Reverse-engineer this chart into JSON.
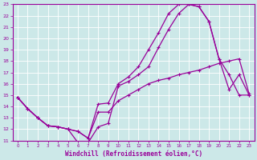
{
  "xlabel": "Windchill (Refroidissement éolien,°C)",
  "bg_color": "#cce8e8",
  "line_color": "#990099",
  "grid_color": "#ffffff",
  "xlim": [
    -0.5,
    23.5
  ],
  "ylim": [
    11,
    23
  ],
  "xticks": [
    0,
    1,
    2,
    3,
    4,
    5,
    6,
    7,
    8,
    9,
    10,
    11,
    12,
    13,
    14,
    15,
    16,
    17,
    18,
    19,
    20,
    21,
    22,
    23
  ],
  "yticks": [
    11,
    12,
    13,
    14,
    15,
    16,
    17,
    18,
    19,
    20,
    21,
    22,
    23
  ],
  "line1_x": [
    0,
    1,
    2,
    3,
    4,
    5,
    6,
    7,
    8,
    9,
    10,
    11,
    12,
    13,
    14,
    15,
    16,
    17,
    18,
    19,
    20,
    21,
    22,
    23
  ],
  "line1_y": [
    14.8,
    13.8,
    13.0,
    12.3,
    12.2,
    12.0,
    11.8,
    11.2,
    13.5,
    13.5,
    14.5,
    15.0,
    15.5,
    16.0,
    16.3,
    16.5,
    16.8,
    17.0,
    17.2,
    17.5,
    17.8,
    18.0,
    18.2,
    15.1
  ],
  "line2_x": [
    0,
    1,
    2,
    3,
    4,
    5,
    6,
    7,
    8,
    9,
    10,
    11,
    12,
    13,
    14,
    15,
    16,
    17,
    18,
    19,
    20,
    21,
    22,
    23
  ],
  "line2_y": [
    14.8,
    13.8,
    13.0,
    12.3,
    12.2,
    12.0,
    11.8,
    11.2,
    14.2,
    14.3,
    16.0,
    16.6,
    17.5,
    19.0,
    20.5,
    22.2,
    23.0,
    23.0,
    22.8,
    21.5,
    18.2,
    16.8,
    15.0,
    15.0
  ],
  "line3_x": [
    0,
    1,
    2,
    3,
    4,
    5,
    6,
    7,
    8,
    9,
    10,
    11,
    12,
    13,
    14,
    15,
    16,
    17,
    18,
    19,
    20,
    21,
    22,
    23
  ],
  "line3_y": [
    14.8,
    13.8,
    13.0,
    12.3,
    12.2,
    12.0,
    10.8,
    10.8,
    12.2,
    12.5,
    15.8,
    16.2,
    16.8,
    17.5,
    19.2,
    20.8,
    22.2,
    23.0,
    22.8,
    21.5,
    18.2,
    15.5,
    16.8,
    15.0
  ]
}
